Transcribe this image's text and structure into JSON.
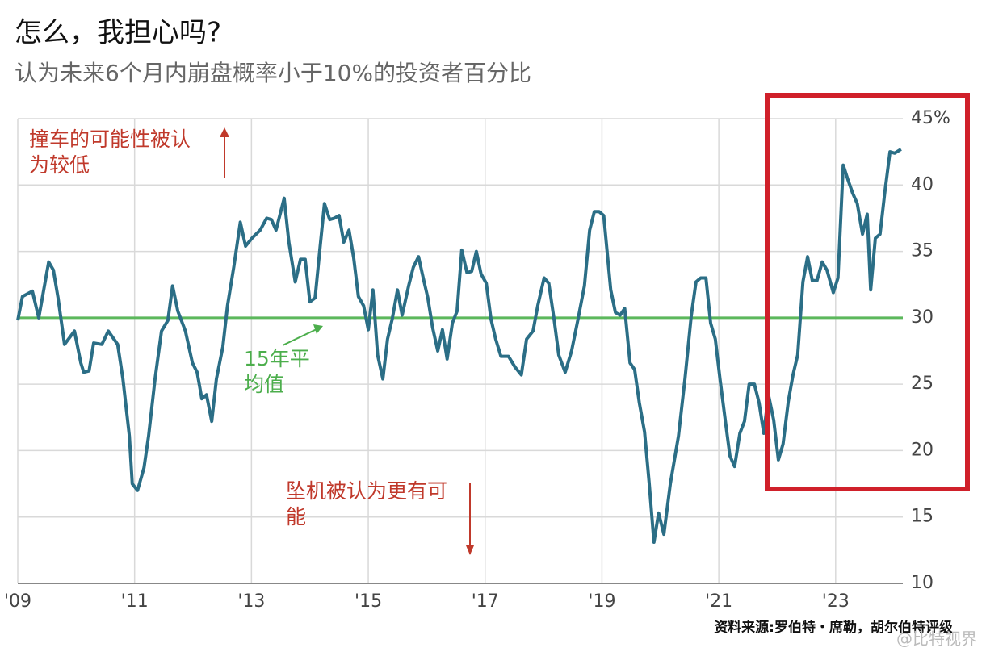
{
  "chart_data": {
    "type": "line",
    "title": "怎么，我担心吗?",
    "subtitle": "认为未来6个月内崩盘概率小于10%的投资者百分比",
    "source": "资料来源:罗伯特・席勒，胡尔伯特评级",
    "watermark": "@比特视界",
    "color": "#2b6e86",
    "xlim": [
      2009,
      2024.15
    ],
    "xticks": [
      {
        "value": 2009,
        "label": "'09"
      },
      {
        "value": 2011,
        "label": "'11"
      },
      {
        "value": 2013,
        "label": "'13"
      },
      {
        "value": 2015,
        "label": "'15"
      },
      {
        "value": 2017,
        "label": "'17"
      },
      {
        "value": 2019,
        "label": "'19"
      },
      {
        "value": 2021,
        "label": "'21"
      },
      {
        "value": 2023,
        "label": "'23"
      }
    ],
    "ylim": [
      10,
      45
    ],
    "yticks": [
      10,
      15,
      20,
      25,
      30,
      35,
      40,
      {
        "value": 45,
        "label": "45%"
      }
    ],
    "grid": true,
    "reference_line": {
      "value": 30,
      "color": "#5cb85c"
    },
    "annotations": [
      {
        "lines": [
          "撞车的可能性被认",
          "为较低"
        ],
        "color": "#c0392b"
      },
      {
        "lines": [
          "15年平",
          "均值"
        ],
        "color": "#4cae4c"
      },
      {
        "lines": [
          "坠机被认为更有可",
          "能"
        ],
        "color": "#c0392b"
      }
    ],
    "x": [
      2009.0,
      2009.08,
      2009.25,
      2009.36,
      2009.53,
      2009.61,
      2009.69,
      2009.8,
      2009.97,
      2010.08,
      2010.13,
      2010.22,
      2010.3,
      2010.44,
      2010.55,
      2010.71,
      2010.8,
      2010.91,
      2010.96,
      2011.05,
      2011.16,
      2011.24,
      2011.35,
      2011.46,
      2011.57,
      2011.65,
      2011.74,
      2011.87,
      2011.99,
      2012.07,
      2012.15,
      2012.23,
      2012.32,
      2012.4,
      2012.51,
      2012.59,
      2012.7,
      2012.81,
      2012.9,
      2013.01,
      2013.15,
      2013.26,
      2013.34,
      2013.42,
      2013.56,
      2013.64,
      2013.75,
      2013.84,
      2013.92,
      2014.0,
      2014.09,
      2014.17,
      2014.25,
      2014.34,
      2014.42,
      2014.5,
      2014.58,
      2014.67,
      2014.75,
      2014.83,
      2014.92,
      2015.0,
      2015.08,
      2015.16,
      2015.25,
      2015.33,
      2015.41,
      2015.5,
      2015.58,
      2015.69,
      2015.77,
      2015.86,
      2015.94,
      2016.02,
      2016.1,
      2016.19,
      2016.27,
      2016.35,
      2016.44,
      2016.52,
      2016.6,
      2016.69,
      2016.77,
      2016.85,
      2016.93,
      2017.02,
      2017.1,
      2017.18,
      2017.27,
      2017.4,
      2017.51,
      2017.62,
      2017.71,
      2017.82,
      2017.9,
      2018.01,
      2018.09,
      2018.18,
      2018.26,
      2018.37,
      2018.48,
      2018.59,
      2018.7,
      2018.79,
      2018.87,
      2018.95,
      2019.03,
      2019.15,
      2019.23,
      2019.31,
      2019.39,
      2019.48,
      2019.56,
      2019.64,
      2019.73,
      2019.81,
      2019.89,
      2019.97,
      2020.06,
      2020.17,
      2020.31,
      2020.42,
      2020.53,
      2020.61,
      2020.69,
      2020.78,
      2020.86,
      2020.94,
      2021.02,
      2021.11,
      2021.19,
      2021.27,
      2021.36,
      2021.44,
      2021.52,
      2021.61,
      2021.69,
      2021.77,
      2021.85,
      2021.94,
      2022.02,
      2022.1,
      2022.19,
      2022.27,
      2022.35,
      2022.44,
      2022.52,
      2022.6,
      2022.68,
      2022.77,
      2022.85,
      2022.96,
      2023.04,
      2023.13,
      2023.21,
      2023.29,
      2023.37,
      2023.46,
      2023.54,
      2023.6,
      2023.68,
      2023.76,
      2023.84,
      2023.93,
      2024.01,
      2024.12
    ],
    "values": [
      29.8,
      31.6,
      32,
      30,
      34.2,
      33.6,
      31.5,
      28,
      29,
      26.6,
      25.9,
      26,
      28.1,
      28,
      29,
      28,
      25.4,
      21.1,
      17.5,
      17,
      18.7,
      21.1,
      25.4,
      29,
      29.8,
      32.4,
      30.5,
      29,
      26.6,
      25.9,
      23.9,
      24.2,
      22.2,
      25.4,
      27.8,
      30.9,
      33.9,
      37.2,
      35.4,
      36,
      36.6,
      37.5,
      37.4,
      36.6,
      39,
      35.7,
      32.7,
      34.4,
      34.4,
      31.2,
      31.5,
      35.1,
      38.6,
      37.4,
      37.5,
      37.7,
      35.7,
      36.6,
      34.5,
      31.6,
      30.9,
      29.1,
      32.1,
      27.2,
      25.4,
      28.4,
      29.9,
      32.1,
      30.2,
      32.4,
      33.8,
      34.6,
      33,
      31.5,
      29.3,
      27.5,
      29.1,
      26.9,
      29.6,
      30.5,
      35.1,
      33.4,
      33.5,
      35,
      33.3,
      32.6,
      29.9,
      28.4,
      27.1,
      27.1,
      26.3,
      25.7,
      28.4,
      29,
      30.9,
      33,
      32.6,
      29.9,
      27.2,
      25.9,
      27.5,
      29.9,
      32.4,
      36.6,
      38,
      38,
      37.7,
      32.1,
      30.4,
      30.2,
      30.7,
      26.6,
      26.1,
      23.6,
      21.4,
      17.5,
      13.1,
      15.3,
      13.7,
      17.5,
      21.1,
      25.4,
      30.2,
      32.7,
      33,
      33,
      29.6,
      28.4,
      25.4,
      22.3,
      19.6,
      18.8,
      21.3,
      22.2,
      25,
      25,
      23.6,
      21.3,
      24.2,
      22.3,
      19.3,
      20.5,
      23.7,
      25.7,
      27.2,
      32.7,
      34.6,
      32.8,
      32.8,
      34.2,
      33.6,
      31.9,
      33,
      41.5,
      40.4,
      39.4,
      38.6,
      36.3,
      37.8,
      32.1,
      36,
      36.3,
      39.4,
      42.5,
      42.4,
      42.7
    ]
  }
}
